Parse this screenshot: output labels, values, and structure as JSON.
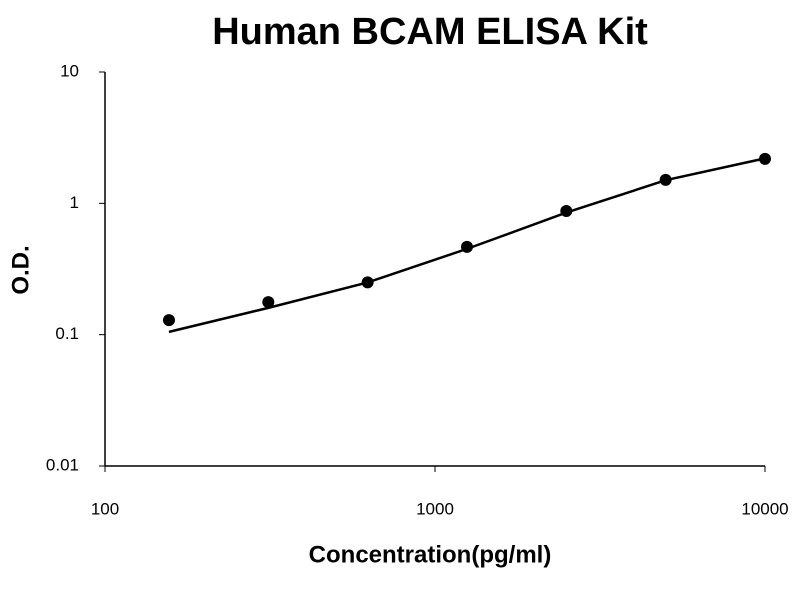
{
  "chart_data": {
    "type": "scatter",
    "title": "Human BCAM ELISA Kit",
    "x_label": "Concentration(pg/ml)",
    "y_label": "O.D.",
    "xscale": "log",
    "yscale": "log",
    "xlim": [
      100,
      10000
    ],
    "ylim": [
      0.01,
      10
    ],
    "xticks": [
      100,
      1000,
      10000
    ],
    "yticks": [
      0.01,
      0.1,
      1,
      10
    ],
    "series": [
      {
        "mode": "markers",
        "color": "#000000",
        "x": [
          156.25,
          312.5,
          625,
          1250,
          2500,
          5000,
          10000
        ],
        "values": [
          0.129,
          0.177,
          0.25,
          0.466,
          0.875,
          1.51,
          2.18
        ]
      },
      {
        "mode": "line",
        "color": "#000000",
        "x": [
          156.25,
          312.5,
          625,
          1250,
          2500,
          5000,
          10000
        ],
        "values": [
          0.105,
          0.16,
          0.25,
          0.45,
          0.85,
          1.5,
          2.2
        ]
      }
    ]
  }
}
